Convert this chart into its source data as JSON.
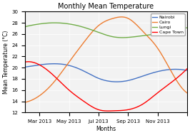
{
  "title": "Monthly Mean Temperature",
  "xlabel": "Months",
  "ylabel": "Mean Temperature (°C)",
  "legend": [
    "Nairobi",
    "Cairo",
    "Lungi",
    "Cape Town"
  ],
  "colors": [
    "#4472c4",
    "#ed7d31",
    "#70ad47",
    "#ff0000"
  ],
  "months": [
    1,
    2,
    3,
    4,
    5,
    6,
    7,
    8,
    9,
    10,
    11,
    12
  ],
  "nairobi": [
    20.1,
    20.5,
    20.7,
    20.4,
    19.4,
    18.1,
    17.5,
    17.7,
    18.5,
    19.3,
    19.7,
    19.5
  ],
  "cairo": [
    13.8,
    15.0,
    17.5,
    21.0,
    24.5,
    27.5,
    28.8,
    28.8,
    26.5,
    23.5,
    19.0,
    15.5
  ],
  "lungi": [
    27.3,
    27.8,
    28.0,
    27.8,
    27.2,
    26.3,
    25.5,
    25.4,
    25.7,
    26.1,
    26.8,
    27.1
  ],
  "cape_town": [
    21.0,
    20.5,
    18.5,
    16.0,
    14.0,
    12.5,
    12.3,
    12.5,
    13.5,
    15.5,
    17.5,
    19.8
  ],
  "tick_positions": [
    2,
    4,
    6,
    8,
    10,
    12
  ],
  "tick_labels": [
    "Mar 2013",
    "May 2013",
    "Jul 2013",
    "Sep 2013",
    "Nov 2013",
    ""
  ],
  "ylim": [
    12,
    30
  ],
  "yticks": [
    12,
    14,
    16,
    18,
    20,
    22,
    24,
    26,
    28,
    30
  ],
  "bg_color": "#f2f2f2",
  "title_fontsize": 7,
  "label_fontsize": 5.5,
  "tick_fontsize": 5,
  "legend_fontsize": 4.5,
  "linewidth": 1.0
}
